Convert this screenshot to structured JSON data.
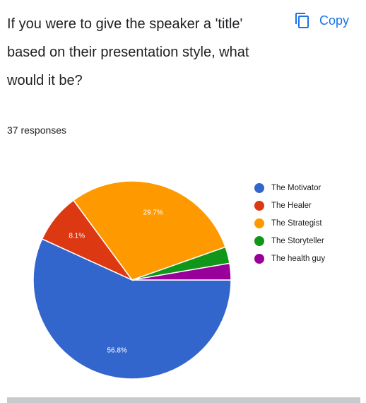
{
  "question": {
    "title": "If you were to give the speaker a 'title' based on their presentation style, what would it be?",
    "responses": "37 responses"
  },
  "copy_button": {
    "label": "Copy",
    "icon": "copy-icon",
    "color": "#1a73e8"
  },
  "chart_data": {
    "type": "pie",
    "slices": [
      {
        "name": "The Motivator",
        "value": 56.8,
        "label": "56.8%",
        "color": "#3366cc"
      },
      {
        "name": "The Healer",
        "value": 8.1,
        "label": "8.1%",
        "color": "#dc3912"
      },
      {
        "name": "The Strategist",
        "value": 29.7,
        "label": "29.7%",
        "color": "#ff9900"
      },
      {
        "name": "The Storyteller",
        "value": 2.7,
        "label": "",
        "color": "#109618"
      },
      {
        "name": "The health guy",
        "value": 2.7,
        "label": "",
        "color": "#990099"
      }
    ],
    "legend_position": "right"
  }
}
